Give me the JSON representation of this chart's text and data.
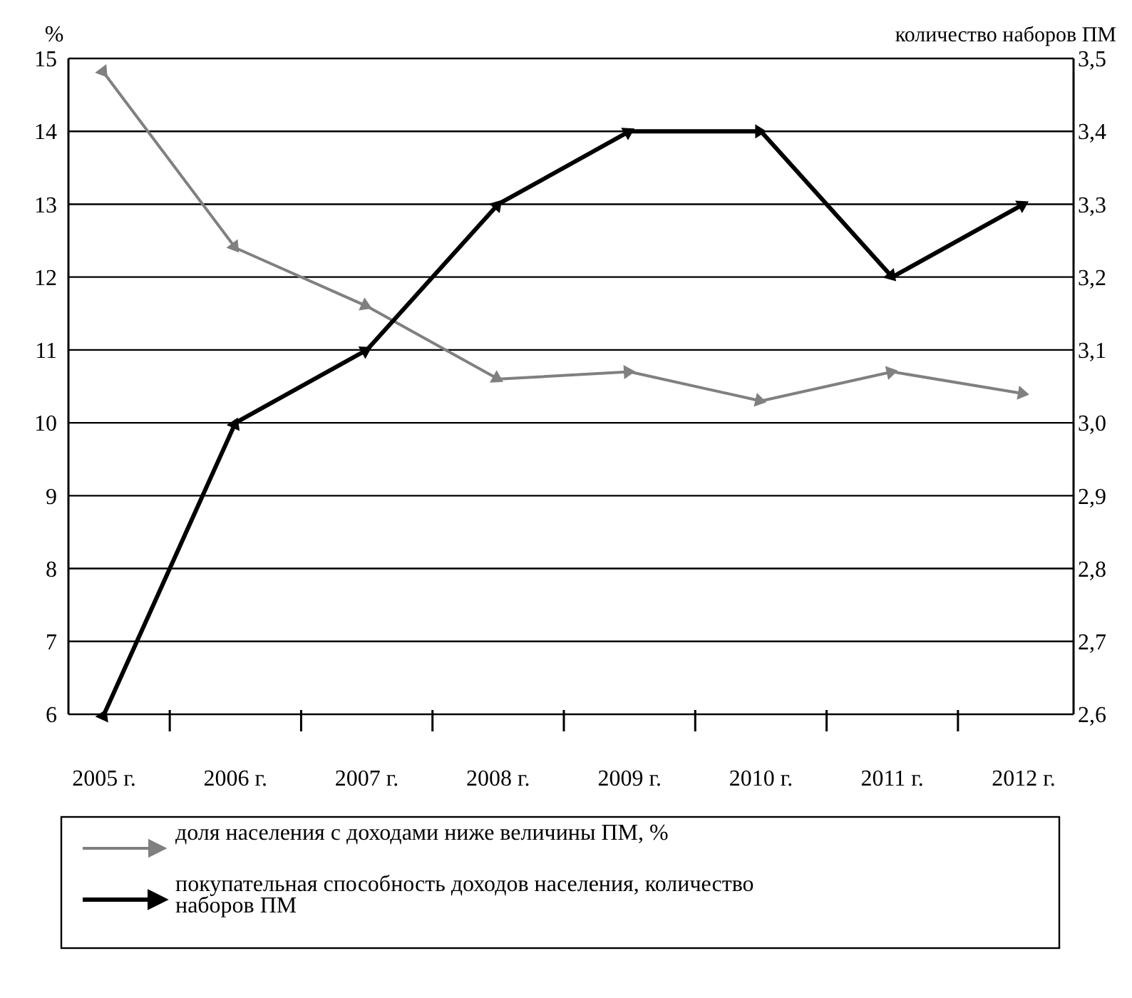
{
  "chart_data": {
    "type": "line",
    "ylabel": "%",
    "y2label": "количество наборов ПМ",
    "categories": [
      "2005 г.",
      "2006 г.",
      "2007 г.",
      "2008 г.",
      "2009 г.",
      "2010 г.",
      "2011 г.",
      "2012 г."
    ],
    "series": [
      {
        "name": "доля населения с доходами ниже величины ПМ, %",
        "color": "#808080",
        "values": [
          14.8,
          12.4,
          11.6,
          10.6,
          10.7,
          10.3,
          10.7,
          10.4
        ]
      },
      {
        "name": "покупательная способность доходов населения, количество наборов ПМ",
        "color": "#000000",
        "axis": "y2",
        "values": [
          2.6,
          3.0,
          3.1,
          3.3,
          3.4,
          3.4,
          3.2,
          3.3
        ]
      }
    ],
    "ylim": [
      6,
      15
    ],
    "yticks": [
      6,
      7,
      8,
      9,
      10,
      11,
      12,
      13,
      14,
      15
    ],
    "y2lim": [
      2.6,
      3.5
    ],
    "y2ticks": [
      {
        "value": 2.6,
        "label": "2,6"
      },
      {
        "value": 2.7,
        "label": "2,7"
      },
      {
        "value": 2.8,
        "label": "2,8"
      },
      {
        "value": 2.9,
        "label": "2,9"
      },
      {
        "value": 3.0,
        "label": "3,0"
      },
      {
        "value": 3.1,
        "label": "3,1"
      },
      {
        "value": 3.2,
        "label": "3,2"
      },
      {
        "value": 3.3,
        "label": "3,3"
      },
      {
        "value": 3.4,
        "label": "3,4"
      },
      {
        "value": 3.5,
        "label": "3,5"
      }
    ],
    "grid": "y",
    "legend": "bottom",
    "marker": "triangle",
    "line_style": "solid"
  }
}
